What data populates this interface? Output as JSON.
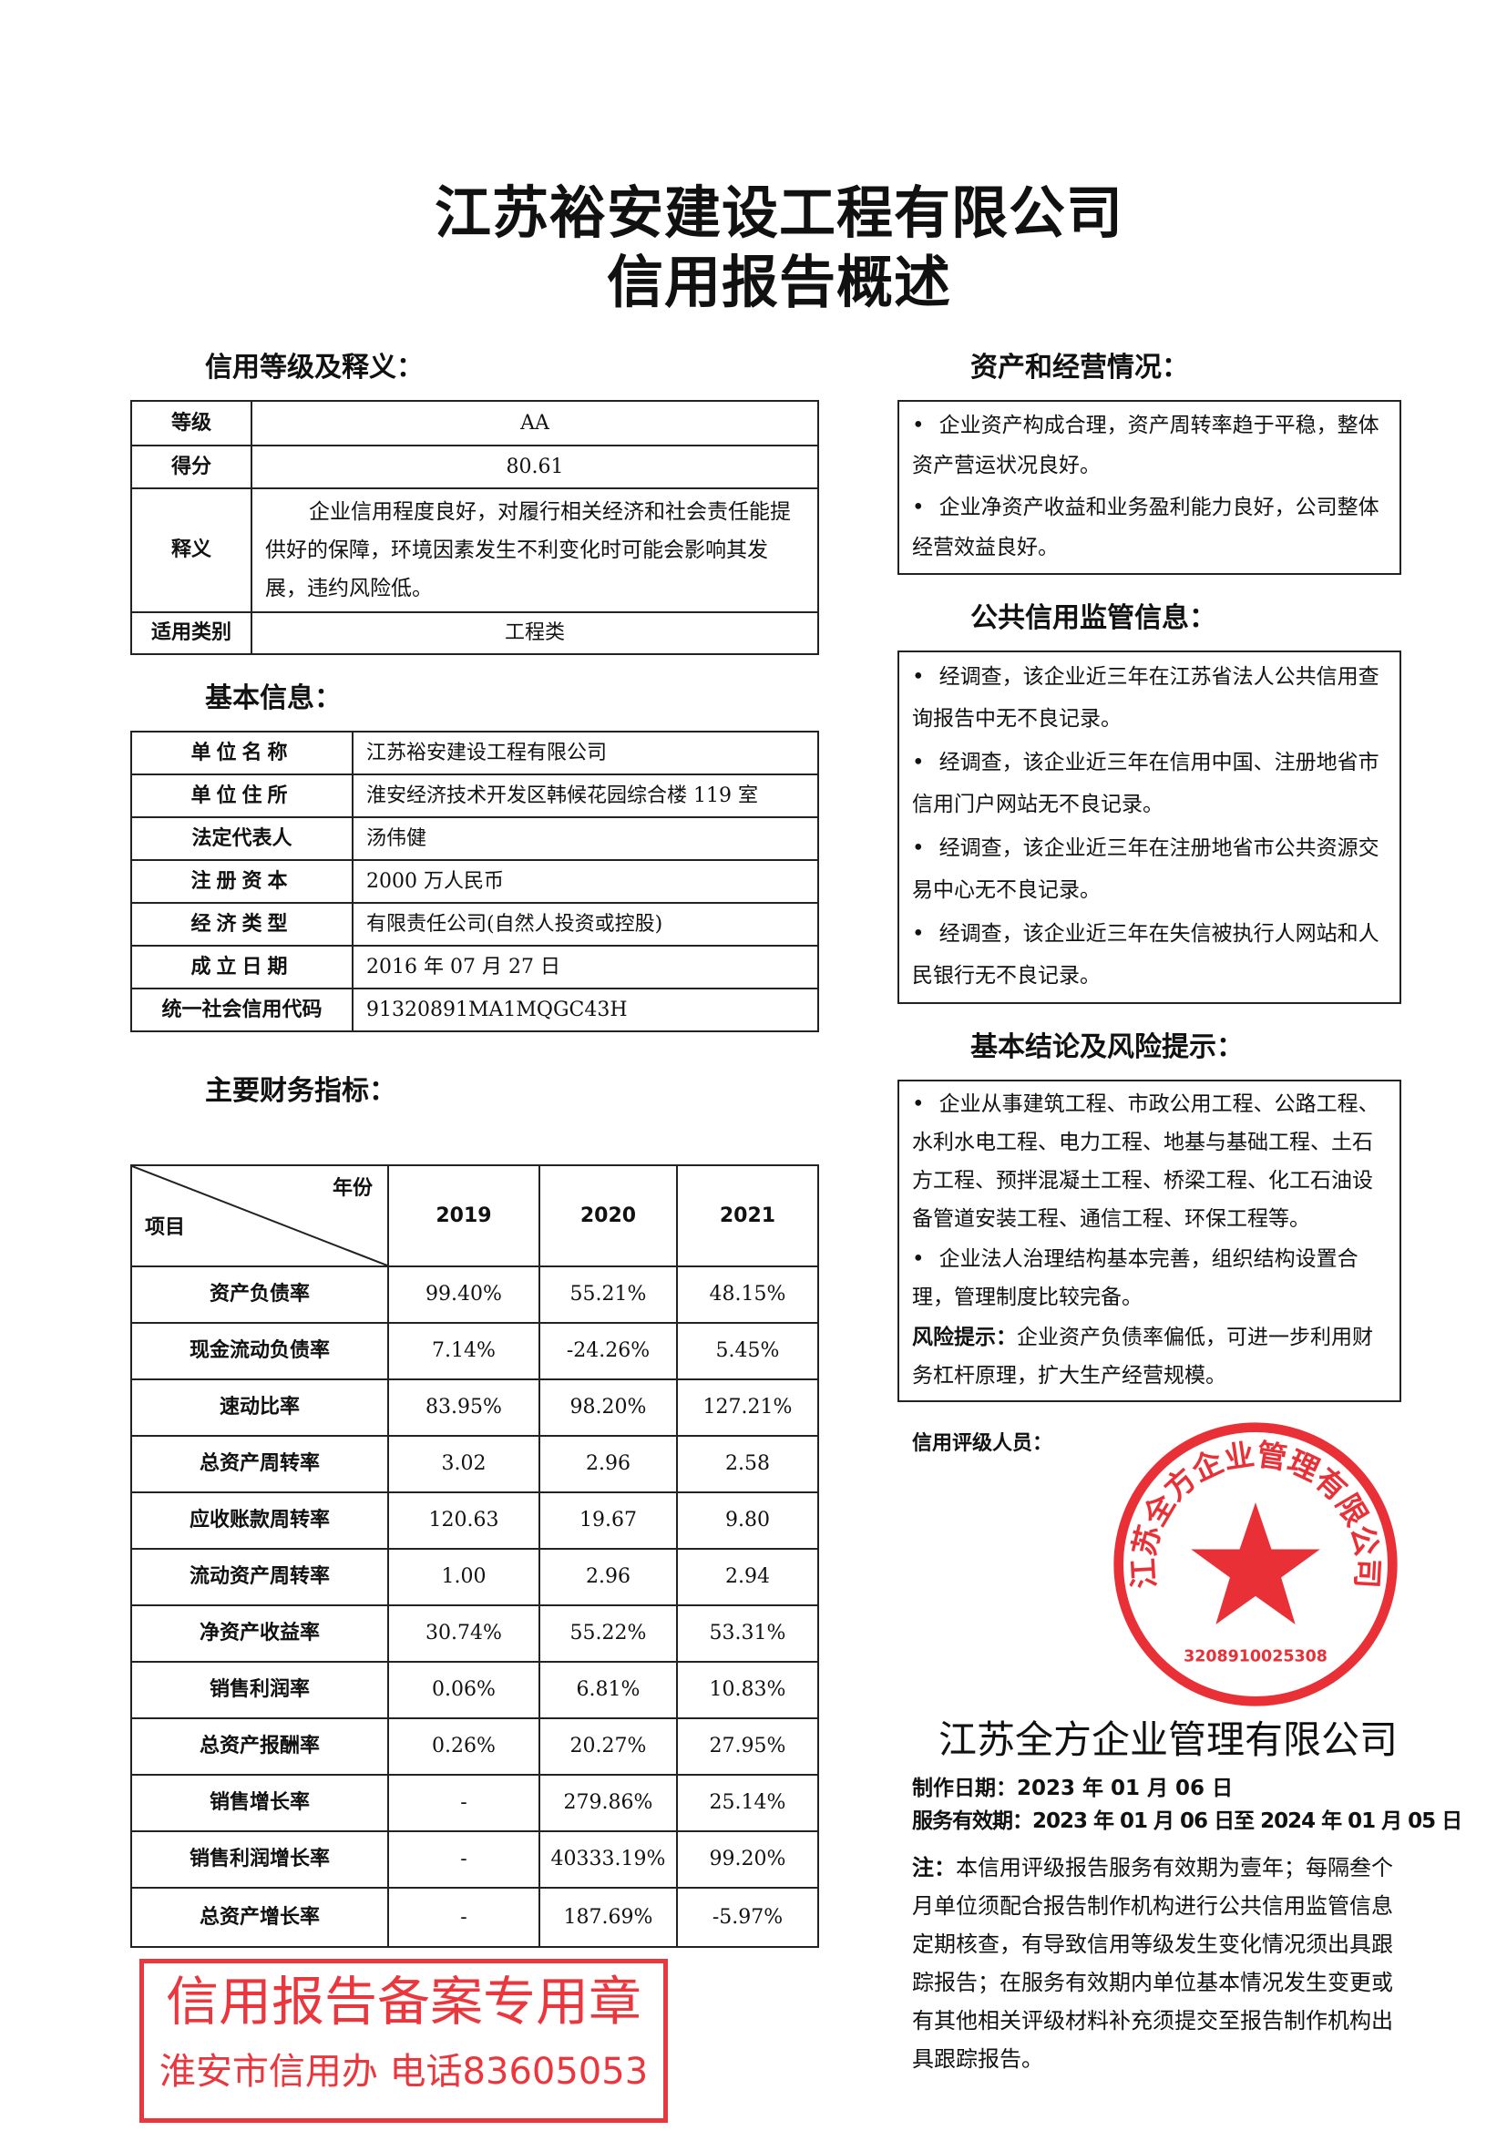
{
  "title": {
    "line1": "江苏裕安建设工程有限公司",
    "line2": "信用报告概述"
  },
  "rating": {
    "heading": "信用等级及释义：",
    "rows": [
      {
        "label": "等级",
        "value": "AA"
      },
      {
        "label": "得分",
        "value": "80.61"
      },
      {
        "label": "释义",
        "value": "企业信用程度良好，对履行相关经济和社会责任能提供好的保障，环境因素发生不利变化时可能会影响其发展，违约风险低。"
      },
      {
        "label": "适用类别",
        "value": "工程类"
      }
    ]
  },
  "basic": {
    "heading": "基本信息：",
    "rows": [
      {
        "label": "单位名称",
        "value": "江苏裕安建设工程有限公司"
      },
      {
        "label": "单位住所",
        "value": "淮安经济技术开发区韩候花园综合楼 119 室"
      },
      {
        "label": "法定代表人",
        "value": "汤伟健"
      },
      {
        "label": "注册资本",
        "value": "2000 万人民币"
      },
      {
        "label": "经济类型",
        "value": "有限责任公司(自然人投资或控股)"
      },
      {
        "label": "成立日期",
        "value": "2016 年 07 月 27 日"
      },
      {
        "label": "统一社会信用代码",
        "value": "91320891MA1MQGC43H"
      }
    ]
  },
  "finance": {
    "heading": "主要财务指标：",
    "corner_top": "年份",
    "corner_bottom": "项目",
    "years": [
      "2019",
      "2020",
      "2021"
    ],
    "rows": [
      {
        "name": "资产负债率",
        "values": [
          "99.40%",
          "55.21%",
          "48.15%"
        ]
      },
      {
        "name": "现金流动负债率",
        "values": [
          "7.14%",
          "-24.26%",
          "5.45%"
        ]
      },
      {
        "name": "速动比率",
        "values": [
          "83.95%",
          "98.20%",
          "127.21%"
        ]
      },
      {
        "name": "总资产周转率",
        "values": [
          "3.02",
          "2.96",
          "2.58"
        ]
      },
      {
        "name": "应收账款周转率",
        "values": [
          "120.63",
          "19.67",
          "9.80"
        ]
      },
      {
        "name": "流动资产周转率",
        "values": [
          "1.00",
          "2.96",
          "2.94"
        ]
      },
      {
        "name": "净资产收益率",
        "values": [
          "30.74%",
          "55.22%",
          "53.31%"
        ]
      },
      {
        "name": "销售利润率",
        "values": [
          "0.06%",
          "6.81%",
          "10.83%"
        ]
      },
      {
        "name": "总资产报酬率",
        "values": [
          "0.26%",
          "20.27%",
          "27.95%"
        ]
      },
      {
        "name": "销售增长率",
        "values": [
          "-",
          "279.86%",
          "25.14%"
        ]
      },
      {
        "name": "销售利润增长率",
        "values": [
          "-",
          "40333.19%",
          "99.20%"
        ]
      },
      {
        "name": "总资产增长率",
        "values": [
          "-",
          "187.69%",
          "-5.97%"
        ]
      }
    ]
  },
  "assets": {
    "heading": "资产和经营情况：",
    "items": [
      "企业资产构成合理，资产周转率趋于平稳，整体资产营运状况良好。",
      "企业净资产收益和业务盈利能力良好，公司整体经营效益良好。"
    ]
  },
  "public": {
    "heading": "公共信用监管信息：",
    "items": [
      "经调查，该企业近三年在江苏省法人公共信用查询报告中无不良记录。",
      "经调查，该企业近三年在信用中国、注册地省市信用门户网站无不良记录。",
      "经调查，该企业近三年在注册地省市公共资源交易中心无不良记录。",
      "经调查，该企业近三年在失信被执行人网站和人民银行无不良记录。"
    ]
  },
  "conclusion": {
    "heading": "基本结论及风险提示：",
    "items": [
      "企业从事建筑工程、市政公用工程、公路工程、水利水电工程、电力工程、地基与基础工程、土石方工程、预拌混凝土工程、桥梁工程、化工石油设备管道安装工程、通信工程、环保工程等。",
      "企业法人治理结构基本完善，组织结构设置合理，管理制度比较完备。"
    ],
    "risk_label": "风险提示：",
    "risk_text": "企业资产负债率偏低，可进一步利用财务杠杆原理，扩大生产经营规模。"
  },
  "footer": {
    "rater_label": "信用评级人员：",
    "agency": "江苏全方企业管理有限公司",
    "date_label": "制作日期：",
    "date": "2023 年 01 月 06 日",
    "validity_label": "服务有效期：",
    "validity": "2023 年 01 月 06 日至 2024 年 01 月 05 日",
    "note_label": "注：",
    "note": "本信用评级报告服务有效期为壹年；每隔叁个月单位须配合报告制作机构进行公共信用监管信息定期核查，有导致信用等级发生变化情况须出具跟踪报告；在服务有效期内单位基本情况发生变更或有其他相关评级材料补充须提交至报告制作机构出具跟踪报告。"
  },
  "stamps": {
    "round_text": "江苏全方企业管理有限公司",
    "round_number": "3208910025308",
    "rect_line1": "信用报告备案专用章",
    "rect_line2": "淮安市信用办 电话83605053",
    "color": "#e8141c"
  }
}
